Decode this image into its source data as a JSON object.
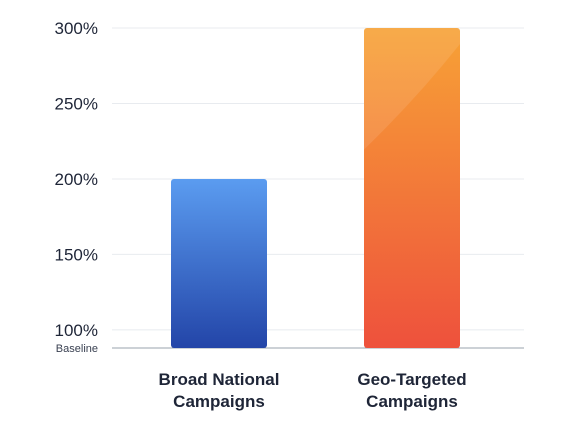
{
  "chart_data": {
    "type": "bar",
    "categories": [
      [
        "Broad National",
        "Campaigns"
      ],
      [
        "Geo-Targeted",
        "Campaigns"
      ]
    ],
    "values": [
      200,
      300
    ],
    "yticks": [
      "300%",
      "250%",
      "200%",
      "150%",
      "100%"
    ],
    "ytick_values": [
      300,
      250,
      200,
      150,
      100
    ],
    "baseline_label": "Baseline",
    "ylim": [
      88,
      300
    ],
    "grid": true,
    "colors": {
      "bar1_top": "#5b9cf0",
      "bar1_bottom": "#2345a8",
      "bar2_top": "#f7a236",
      "bar2_bottom": "#ee513c",
      "grid": "#e8ebef",
      "axis": "#9aa3ad"
    }
  }
}
